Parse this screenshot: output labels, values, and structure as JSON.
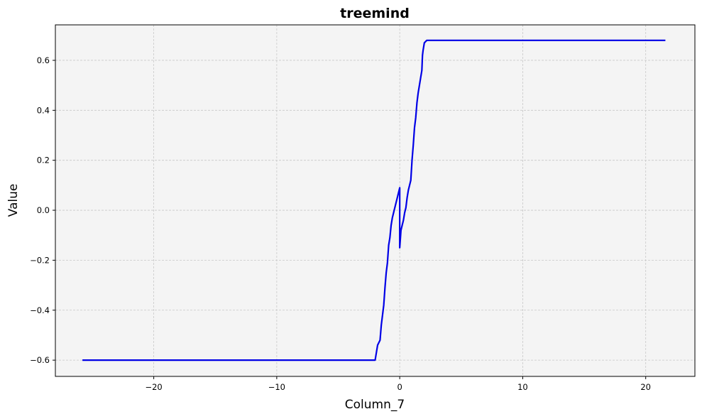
{
  "chart_data": {
    "type": "line",
    "title": "treemind",
    "xlabel": "Column_7",
    "ylabel": "Value",
    "xlim": [
      -28.0,
      24.0
    ],
    "ylim": [
      -0.665,
      0.742
    ],
    "xticks": [
      -20,
      -10,
      0,
      10,
      20
    ],
    "xtick_labels": [
      "−20",
      "−10",
      "0",
      "10",
      "20"
    ],
    "yticks": [
      -0.6,
      -0.4,
      -0.2,
      0.0,
      0.2,
      0.4,
      0.6
    ],
    "ytick_labels": [
      "−0.6",
      "−0.4",
      "−0.2",
      "0.0",
      "0.2",
      "0.4",
      "0.6"
    ],
    "grid": true,
    "plot_background": "#f4f4f4",
    "line_color": "#0000e6",
    "series": [
      {
        "x": [
          -25.8,
          -2.2,
          -2.0,
          -1.8,
          -1.6,
          -1.5,
          -1.4,
          -1.3,
          -1.2,
          -1.1,
          -1.0,
          -0.9,
          -0.8,
          -0.7,
          -0.6,
          -0.5,
          -0.4,
          -0.3,
          -0.2,
          -0.1,
          -0.05,
          0.0,
          0.0,
          0.1,
          0.2,
          0.3,
          0.4,
          0.5,
          0.6,
          0.7,
          0.8,
          0.9,
          1.0,
          1.1,
          1.2,
          1.3,
          1.4,
          1.5,
          1.6,
          1.7,
          1.8,
          1.85,
          1.9,
          2.0,
          2.2,
          21.6
        ],
        "y": [
          -0.6,
          -0.6,
          -0.6,
          -0.54,
          -0.52,
          -0.46,
          -0.42,
          -0.38,
          -0.31,
          -0.25,
          -0.21,
          -0.14,
          -0.11,
          -0.06,
          -0.03,
          -0.01,
          0.01,
          0.03,
          0.05,
          0.07,
          0.08,
          0.09,
          -0.15,
          -0.08,
          -0.06,
          -0.04,
          -0.01,
          0.01,
          0.05,
          0.08,
          0.1,
          0.12,
          0.2,
          0.26,
          0.33,
          0.37,
          0.43,
          0.47,
          0.5,
          0.53,
          0.56,
          0.62,
          0.64,
          0.67,
          0.68,
          0.68
        ]
      }
    ]
  }
}
